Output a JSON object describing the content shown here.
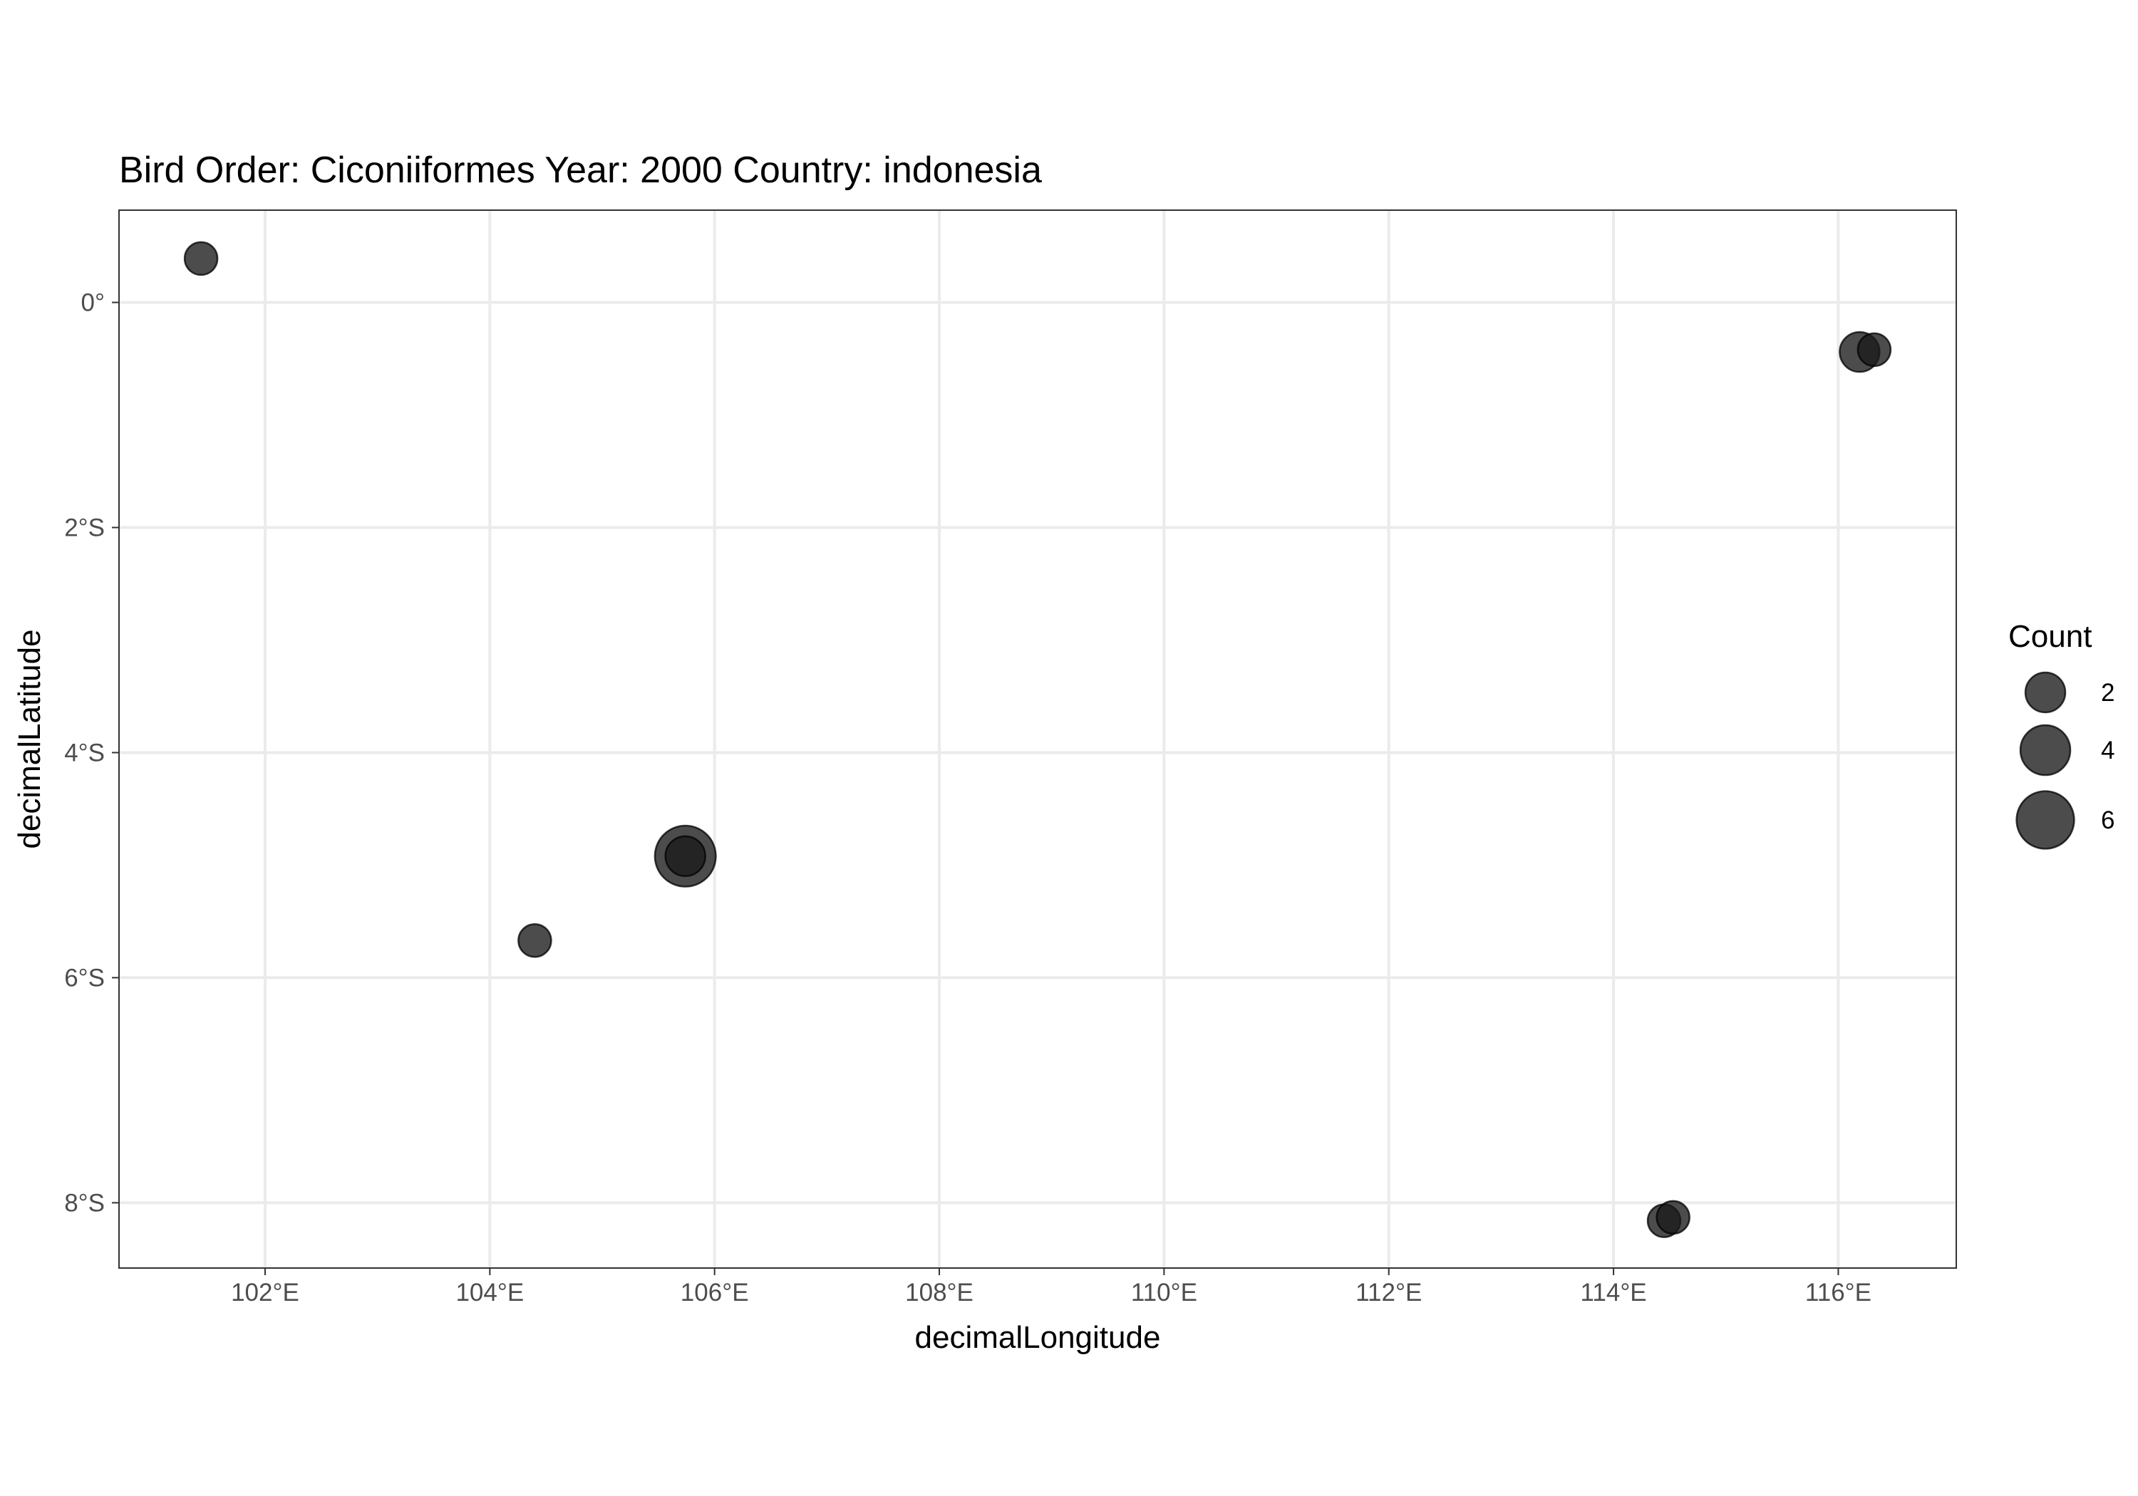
{
  "chart_data": {
    "type": "scatter",
    "title": "Bird Order: Ciconiiformes Year: 2000 Country: indonesia",
    "xlabel": "decimalLongitude",
    "ylabel": "decimalLatitude",
    "xlim": [
      100.7,
      117.05
    ],
    "ylim": [
      -8.58,
      0.82
    ],
    "x_ticks": [
      102,
      104,
      106,
      108,
      110,
      112,
      114,
      116
    ],
    "x_tick_labels": [
      "102°E",
      "104°E",
      "106°E",
      "108°E",
      "110°E",
      "112°E",
      "114°E",
      "116°E"
    ],
    "y_ticks": [
      0,
      -2,
      -4,
      -6,
      -8
    ],
    "y_tick_labels": [
      "0°",
      "2°S",
      "4°S",
      "6°S",
      "8°S"
    ],
    "grid": true,
    "legend": {
      "title": "Count",
      "placement": "right",
      "entries": [
        {
          "label": "2",
          "value": 2
        },
        {
          "label": "4",
          "value": 4
        },
        {
          "label": "6",
          "value": 6
        }
      ]
    },
    "point_color": "#1a1a1a",
    "point_opacity": 0.78,
    "points": [
      {
        "x": 101.43,
        "y": 0.39,
        "count": 1
      },
      {
        "x": 104.4,
        "y": -5.67,
        "count": 1
      },
      {
        "x": 105.74,
        "y": -4.92,
        "count": 7
      },
      {
        "x": 105.74,
        "y": -4.92,
        "count": 2
      },
      {
        "x": 116.19,
        "y": -0.44,
        "count": 2
      },
      {
        "x": 116.32,
        "y": -0.42,
        "count": 1
      },
      {
        "x": 114.45,
        "y": -8.16,
        "count": 1
      },
      {
        "x": 114.53,
        "y": -8.13,
        "count": 1
      }
    ]
  }
}
